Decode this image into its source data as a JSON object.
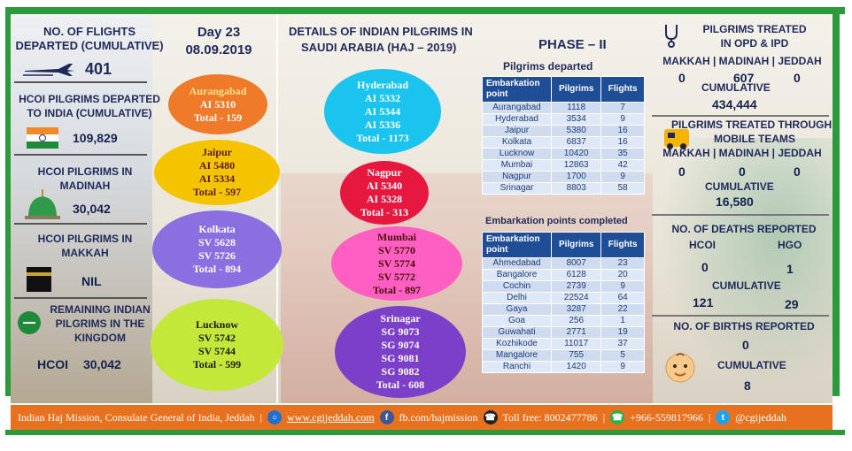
{
  "left": {
    "flights_title": "NO. OF FLIGHTS DEPARTED (CUMULATIVE)",
    "flights_value": "401",
    "departed_title": "HCOI PILGRIMS DEPARTED TO INDIA (CUMULATIVE)",
    "departed_value": "109,829",
    "madinah_title": "HCOI PILGRIMS IN MADINAH",
    "madinah_value": "30,042",
    "makkah_title": "HCOI PILGRIMS IN MAKKAH",
    "makkah_value": "NIL",
    "remaining_title": "REMAINING INDIAN PILGRIMS IN THE KINGDOM",
    "remaining_label": "HCOI",
    "remaining_value": "30,042"
  },
  "day": {
    "label": "Day 23",
    "date": "08.09.2019"
  },
  "center": {
    "title_line1": "DETAILS OF INDIAN PILGRIMS IN",
    "title_line2": "SAUDI ARABIA (HAJ – 2019)",
    "phase": "PHASE – II"
  },
  "ovals": [
    {
      "city": "Aurangabad",
      "flights": [
        "AI 5310"
      ],
      "total": "Total - 159",
      "color": "#ee7a2a",
      "text": "#ffffff"
    },
    {
      "city": "Jaipur",
      "flights": [
        "AI 5480",
        "AI 5334"
      ],
      "total": "Total - 597",
      "color": "#f5c400",
      "text": "#5a1a1a"
    },
    {
      "city": "Kolkata",
      "flights": [
        "SV 5628",
        "SV 5726"
      ],
      "total": "Total - 894",
      "color": "#8a6fe0",
      "text": "#ffffff"
    },
    {
      "city": "Lucknow",
      "flights": [
        "SV 5742",
        "SV 5744"
      ],
      "total": "Total - 599",
      "color": "#c4e83a",
      "text": "#1a1a1a"
    },
    {
      "city": "Hyderabad",
      "flights": [
        "AI 5332",
        "AI 5344",
        "AI 5336"
      ],
      "total": "Total - 1173",
      "color": "#1bc4ee",
      "text": "#ffffff"
    },
    {
      "city": "Nagpur",
      "flights": [
        "AI 5340",
        "AI 5328"
      ],
      "total": "Total - 313",
      "color": "#e6183f",
      "text": "#ffffff"
    },
    {
      "city": "Mumbai",
      "flights": [
        "SV 5770",
        "SV 5774",
        "SV  5772"
      ],
      "total": "Total - 897",
      "color": "#ff5fc0",
      "text": "#4a0d0d"
    },
    {
      "city": "Srinagar",
      "flights": [
        "SG 9073",
        "SG 9074",
        "SG 9081",
        "SG 9082"
      ],
      "total": "Total - 608",
      "color": "#7b3fc8",
      "text": "#ffffff"
    }
  ],
  "departed_table": {
    "title": "Pilgrims departed",
    "headers": [
      "Embarkation point",
      "Pilgrims",
      "Flights"
    ],
    "rows": [
      [
        "Aurangabad",
        "1118",
        "7"
      ],
      [
        "Hyderabad",
        "3534",
        "9"
      ],
      [
        "Jaipur",
        "5380",
        "16"
      ],
      [
        "Kolkata",
        "6837",
        "16"
      ],
      [
        "Lucknow",
        "10420",
        "35"
      ],
      [
        "Mumbai",
        "12863",
        "42"
      ],
      [
        "Nagpur",
        "1700",
        "9"
      ],
      [
        "Srinagar",
        "8803",
        "58"
      ]
    ]
  },
  "completed_table": {
    "title": "Embarkation points completed",
    "headers": [
      "Embarkation point",
      "Pilgrims",
      "Flights"
    ],
    "rows": [
      [
        "Ahmedabad",
        "8007",
        "23"
      ],
      [
        "Bangalore",
        "6128",
        "20"
      ],
      [
        "Cochin",
        "2739",
        "9"
      ],
      [
        "Delhi",
        "22524",
        "64"
      ],
      [
        "Gaya",
        "3287",
        "22"
      ],
      [
        "Goa",
        "256",
        "1"
      ],
      [
        "Guwahati",
        "2771",
        "19"
      ],
      [
        "Kozhikode",
        "11017",
        "37"
      ],
      [
        "Mangalore",
        "755",
        "5"
      ],
      [
        "Ranchi",
        "1420",
        "9"
      ]
    ]
  },
  "right": {
    "treated_title_1": "PILGRIMS TREATED",
    "treated_title_2": "IN OPD & IPD",
    "cities": "MAKKAH | MADINAH | JEDDAH",
    "treated_values": [
      "0",
      "607",
      "0"
    ],
    "cumulative_label": "CUMULATIVE",
    "treated_cumulative": "434,444",
    "mobile_title_1": "PILGRIMS TREATED THROUGH",
    "mobile_title_2": "MOBILE TEAMS",
    "mobile_values": [
      "0",
      "0",
      "0"
    ],
    "mobile_cumulative": "16,580",
    "deaths_title": "NO. OF DEATHS REPORTED",
    "deaths_hcoi_label": "HCOI",
    "deaths_hgo_label": "HGO",
    "deaths_hcoi": "0",
    "deaths_hgo": "1",
    "deaths_cum_hcoi": "121",
    "deaths_cum_hgo": "29",
    "births_title": "NO. OF BIRTHS REPORTED",
    "births_value": "0",
    "births_cumulative": "8"
  },
  "footer": {
    "mission": "Indian Haj Mission, Consulate General of India, Jeddah",
    "website": "www.cgijeddah.com",
    "facebook": "fb.com/hajmission",
    "tollfree": "Toll free: 8002477786",
    "whatsapp": "+966-559817966",
    "twitter": "@cgijeddah"
  }
}
